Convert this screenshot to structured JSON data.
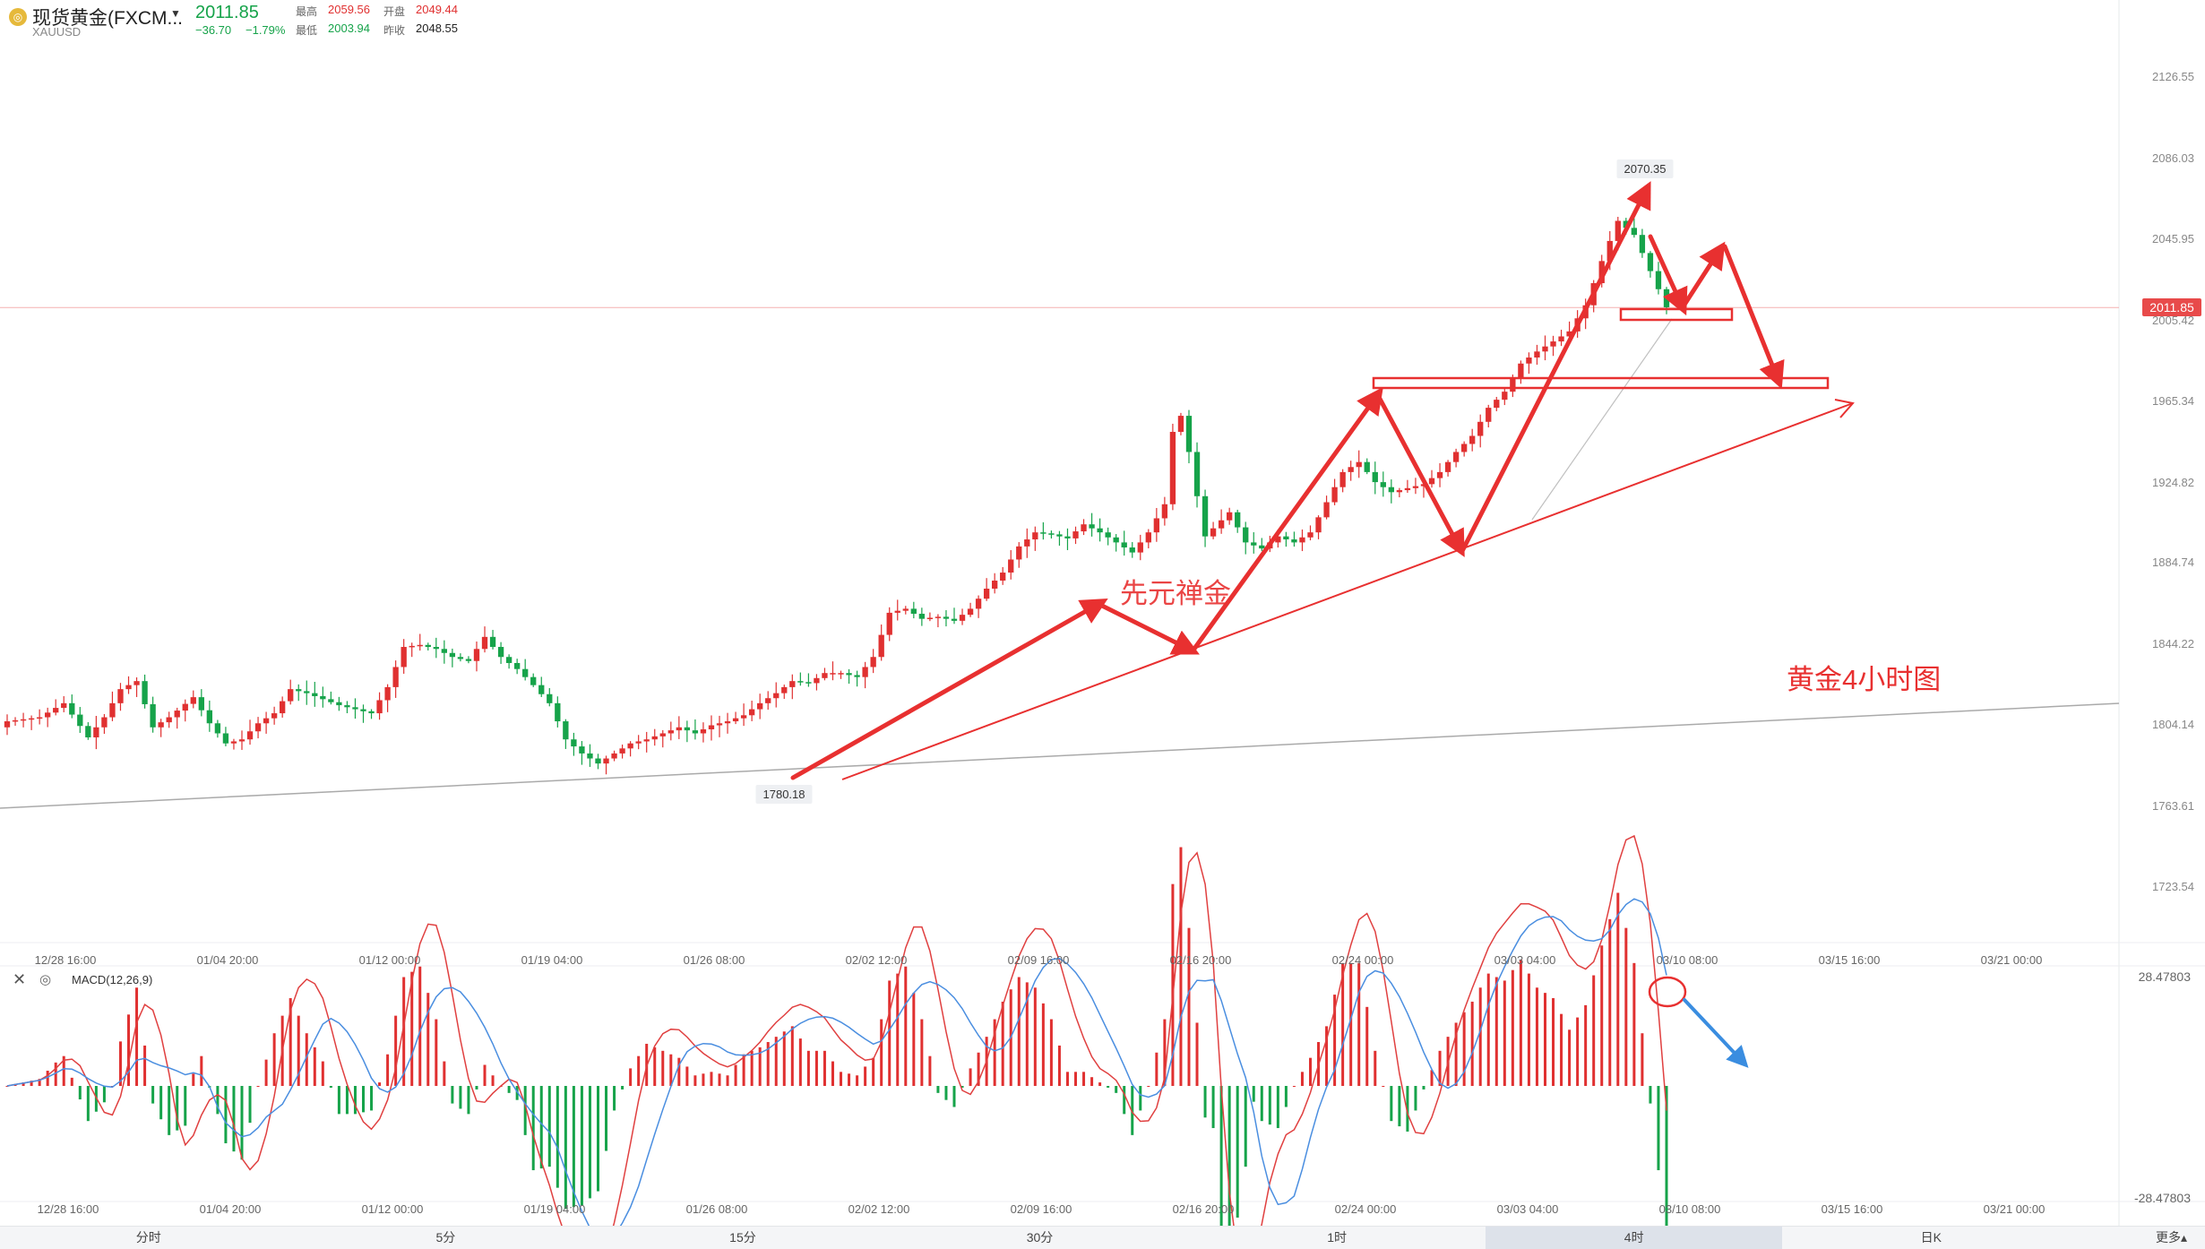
{
  "symbol": {
    "name": "现货黄金(FXCM...",
    "code": "XAUUSD",
    "price": "2011.85",
    "change": "−36.70",
    "change_pct": "−1.79%",
    "high_label": "最高",
    "high": "2059.56",
    "open_label": "开盘",
    "open": "2049.44",
    "low_label": "最低",
    "low": "2003.94",
    "prev_close_label": "昨收",
    "prev_close": "2048.55"
  },
  "price_axis": [
    "2126.55",
    "2086.03",
    "2045.95",
    "2005.42",
    "1965.34",
    "1924.82",
    "1884.74",
    "1844.22",
    "1804.14",
    "1763.61",
    "1723.54"
  ],
  "current_price_tag": "2011.85",
  "time_axis": [
    "12/28 16:00",
    "01/04 20:00",
    "01/12 00:00",
    "01/19 04:00",
    "01/26 08:00",
    "02/02 12:00",
    "02/09 16:00",
    "02/16 20:00",
    "02/24 00:00",
    "03/03 04:00",
    "03/10 08:00",
    "03/15 16:00",
    "03/21 00:00"
  ],
  "callouts": {
    "high": "2070.35",
    "low": "1780.18"
  },
  "annotations": {
    "watermark": "先元禅金",
    "chart_label": "黄金4小时图"
  },
  "macd": {
    "title": "MACD(12,26,9)",
    "max": "28.47803",
    "min": "-28.47803"
  },
  "tabs": [
    "分时",
    "5分",
    "15分",
    "30分",
    "1时",
    "4时",
    "日K"
  ],
  "active_tab": "4时",
  "more_label": "更多▴",
  "colors": {
    "up": "#e03030",
    "down": "#16a34a",
    "annotation": "#e83030",
    "macd_fast": "#e04040",
    "macd_slow": "#4a8ee0"
  },
  "chart_data": {
    "type": "candlestick",
    "x_range": [
      "12/28 16:00",
      "03/21 00:00"
    ],
    "y_range": [
      1723.54,
      2126.55
    ],
    "price_path": [
      [
        0,
        1806
      ],
      [
        4,
        1808
      ],
      [
        7,
        1815
      ],
      [
        10,
        1798
      ],
      [
        12,
        1808
      ],
      [
        14,
        1822
      ],
      [
        16,
        1826
      ],
      [
        18,
        1803
      ],
      [
        20,
        1808
      ],
      [
        23,
        1818
      ],
      [
        25,
        1805
      ],
      [
        27,
        1795
      ],
      [
        29,
        1797
      ],
      [
        31,
        1805
      ],
      [
        33,
        1810
      ],
      [
        35,
        1822
      ],
      [
        37,
        1820
      ],
      [
        39,
        1817
      ],
      [
        41,
        1814
      ],
      [
        43,
        1812
      ],
      [
        45,
        1810
      ],
      [
        47,
        1823
      ],
      [
        49,
        1843
      ],
      [
        51,
        1844
      ],
      [
        53,
        1842
      ],
      [
        55,
        1838
      ],
      [
        57,
        1836
      ],
      [
        59,
        1848
      ],
      [
        61,
        1838
      ],
      [
        63,
        1832
      ],
      [
        65,
        1824
      ],
      [
        67,
        1815
      ],
      [
        69,
        1797
      ],
      [
        71,
        1790
      ],
      [
        73,
        1785
      ],
      [
        75,
        1790
      ],
      [
        77,
        1795
      ],
      [
        79,
        1797
      ],
      [
        81,
        1800
      ],
      [
        83,
        1803
      ],
      [
        85,
        1800
      ],
      [
        87,
        1804
      ],
      [
        89,
        1806
      ],
      [
        91,
        1809
      ],
      [
        93,
        1815
      ],
      [
        95,
        1820
      ],
      [
        97,
        1826
      ],
      [
        99,
        1825
      ],
      [
        101,
        1830
      ],
      [
        103,
        1830
      ],
      [
        105,
        1828
      ],
      [
        107,
        1838
      ],
      [
        109,
        1860
      ],
      [
        111,
        1862
      ],
      [
        113,
        1857
      ],
      [
        115,
        1858
      ],
      [
        117,
        1856
      ],
      [
        119,
        1862
      ],
      [
        121,
        1872
      ],
      [
        123,
        1880
      ],
      [
        125,
        1893
      ],
      [
        127,
        1900
      ],
      [
        129,
        1899
      ],
      [
        131,
        1897
      ],
      [
        133,
        1904
      ],
      [
        135,
        1900
      ],
      [
        137,
        1895
      ],
      [
        139,
        1890
      ],
      [
        141,
        1900
      ],
      [
        143,
        1914
      ],
      [
        144,
        1950
      ],
      [
        145,
        1958
      ],
      [
        146,
        1940
      ],
      [
        147,
        1918
      ],
      [
        148,
        1898
      ],
      [
        149,
        1902
      ],
      [
        151,
        1910
      ],
      [
        153,
        1895
      ],
      [
        155,
        1892
      ],
      [
        157,
        1898
      ],
      [
        159,
        1895
      ],
      [
        161,
        1900
      ],
      [
        163,
        1915
      ],
      [
        165,
        1930
      ],
      [
        167,
        1935
      ],
      [
        169,
        1925
      ],
      [
        171,
        1920
      ],
      [
        173,
        1922
      ],
      [
        175,
        1924
      ],
      [
        177,
        1930
      ],
      [
        179,
        1940
      ],
      [
        181,
        1948
      ],
      [
        183,
        1962
      ],
      [
        185,
        1970
      ],
      [
        187,
        1984
      ],
      [
        189,
        1990
      ],
      [
        191,
        1995
      ],
      [
        193,
        2000
      ],
      [
        195,
        2013
      ],
      [
        197,
        2035
      ],
      [
        199,
        2055
      ],
      [
        201,
        2048
      ],
      [
        203,
        2030
      ],
      [
        205,
        2012
      ]
    ],
    "high": {
      "value": 2070.35,
      "x": "03/10 08:00"
    },
    "low": {
      "value": 1780.18,
      "x": "01/29"
    },
    "last": 2011.85
  }
}
